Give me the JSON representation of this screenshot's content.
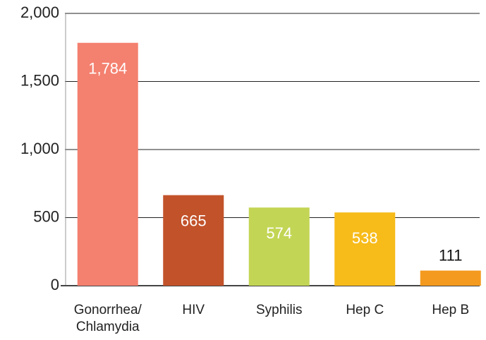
{
  "chart_data": {
    "type": "bar",
    "categories": [
      "Gonorrhea/\nChlamydia",
      "HIV",
      "Syphilis",
      "Hep C",
      "Hep B"
    ],
    "values": [
      1784,
      665,
      574,
      538,
      111
    ],
    "value_labels": [
      "1,784",
      "665",
      "574",
      "538",
      "111"
    ],
    "colors": [
      "#f4806f",
      "#c2522a",
      "#c3d554",
      "#f7bb1a",
      "#f49a1f"
    ],
    "ylim": [
      0,
      2000
    ],
    "yticks": [
      0,
      {
        "value": 500,
        "label": "500"
      },
      {
        "value": 1000,
        "label": "1,000"
      },
      {
        "value": 1500,
        "label": "1,500"
      },
      {
        "value": 2000,
        "label": "2,000"
      }
    ],
    "grid": true
  }
}
